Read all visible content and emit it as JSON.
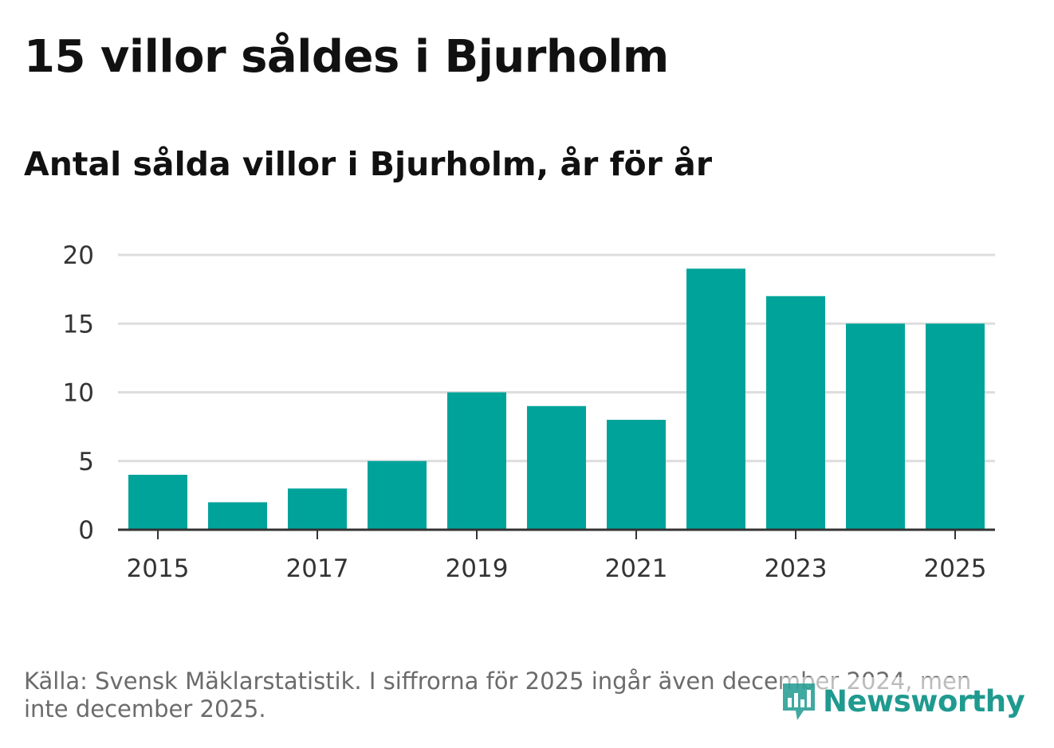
{
  "header": {
    "title": "15 villor såldes i Bjurholm",
    "subtitle": "Antal sålda villor i Bjurholm, år för år"
  },
  "footer": {
    "source": "Källa: Svensk Mäklarstatistik. I siffrorna för 2025 ingår även december 2024, men inte december 2025.",
    "logo_text": "Newsworthy"
  },
  "colors": {
    "bar": "#00A39A",
    "grid": "#dddddd",
    "axis": "#333333",
    "logo": "#1f9a8f"
  },
  "chart_data": {
    "type": "bar",
    "title": "Antal sålda villor i Bjurholm, år för år",
    "xlabel": "",
    "ylabel": "",
    "categories": [
      "2015",
      "2016",
      "2017",
      "2018",
      "2019",
      "2020",
      "2021",
      "2022",
      "2023",
      "2024",
      "2025"
    ],
    "values": [
      4,
      2,
      3,
      5,
      10,
      9,
      8,
      19,
      17,
      15,
      15
    ],
    "ylim": [
      0,
      20
    ],
    "yticks": [
      0,
      5,
      10,
      15,
      20
    ],
    "xtick_labels": [
      "2015",
      "2017",
      "2019",
      "2021",
      "2023",
      "2025"
    ],
    "grid": true
  }
}
